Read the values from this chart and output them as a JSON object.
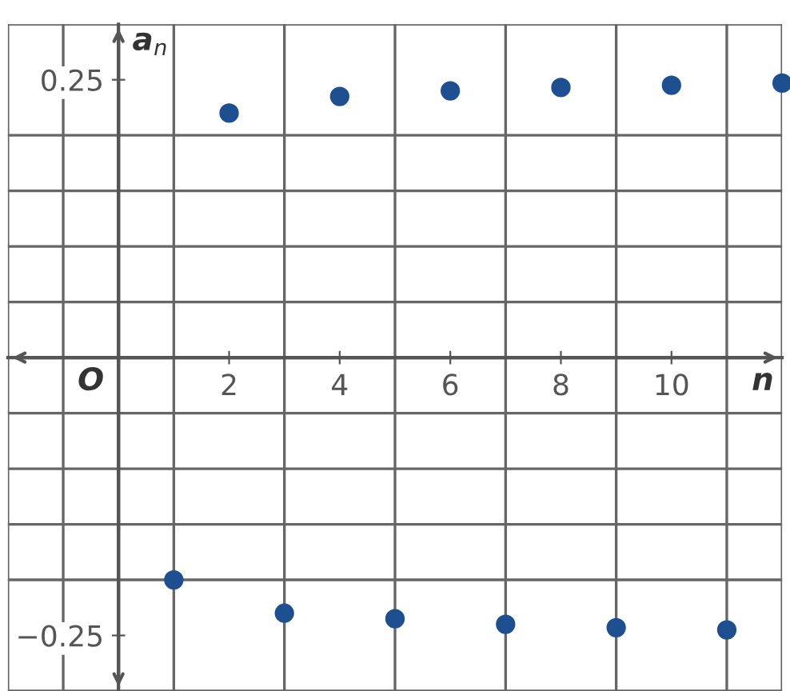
{
  "chart_data": {
    "type": "scatter",
    "xlabel": "n",
    "ylabel": "a$_{n}$",
    "x": [
      1,
      2,
      3,
      4,
      5,
      6,
      7,
      8,
      9,
      10,
      11,
      12
    ],
    "series": [
      {
        "color": "#1d4f91",
        "values": [
          -0.2,
          0.22,
          -0.23,
          0.235,
          -0.235,
          0.24,
          -0.24,
          0.243,
          -0.243,
          0.245,
          -0.245,
          0.247
        ]
      }
    ],
    "xlim": [
      -2,
      12
    ],
    "ylim": [
      -0.3,
      0.3
    ],
    "xticks": [
      2,
      4,
      6,
      8,
      10
    ],
    "yticks": [
      {
        "value": -0.25,
        "label": "−0.25"
      },
      0.25
    ],
    "annotations": [
      "O"
    ],
    "grid": true,
    "marker": "circle"
  }
}
